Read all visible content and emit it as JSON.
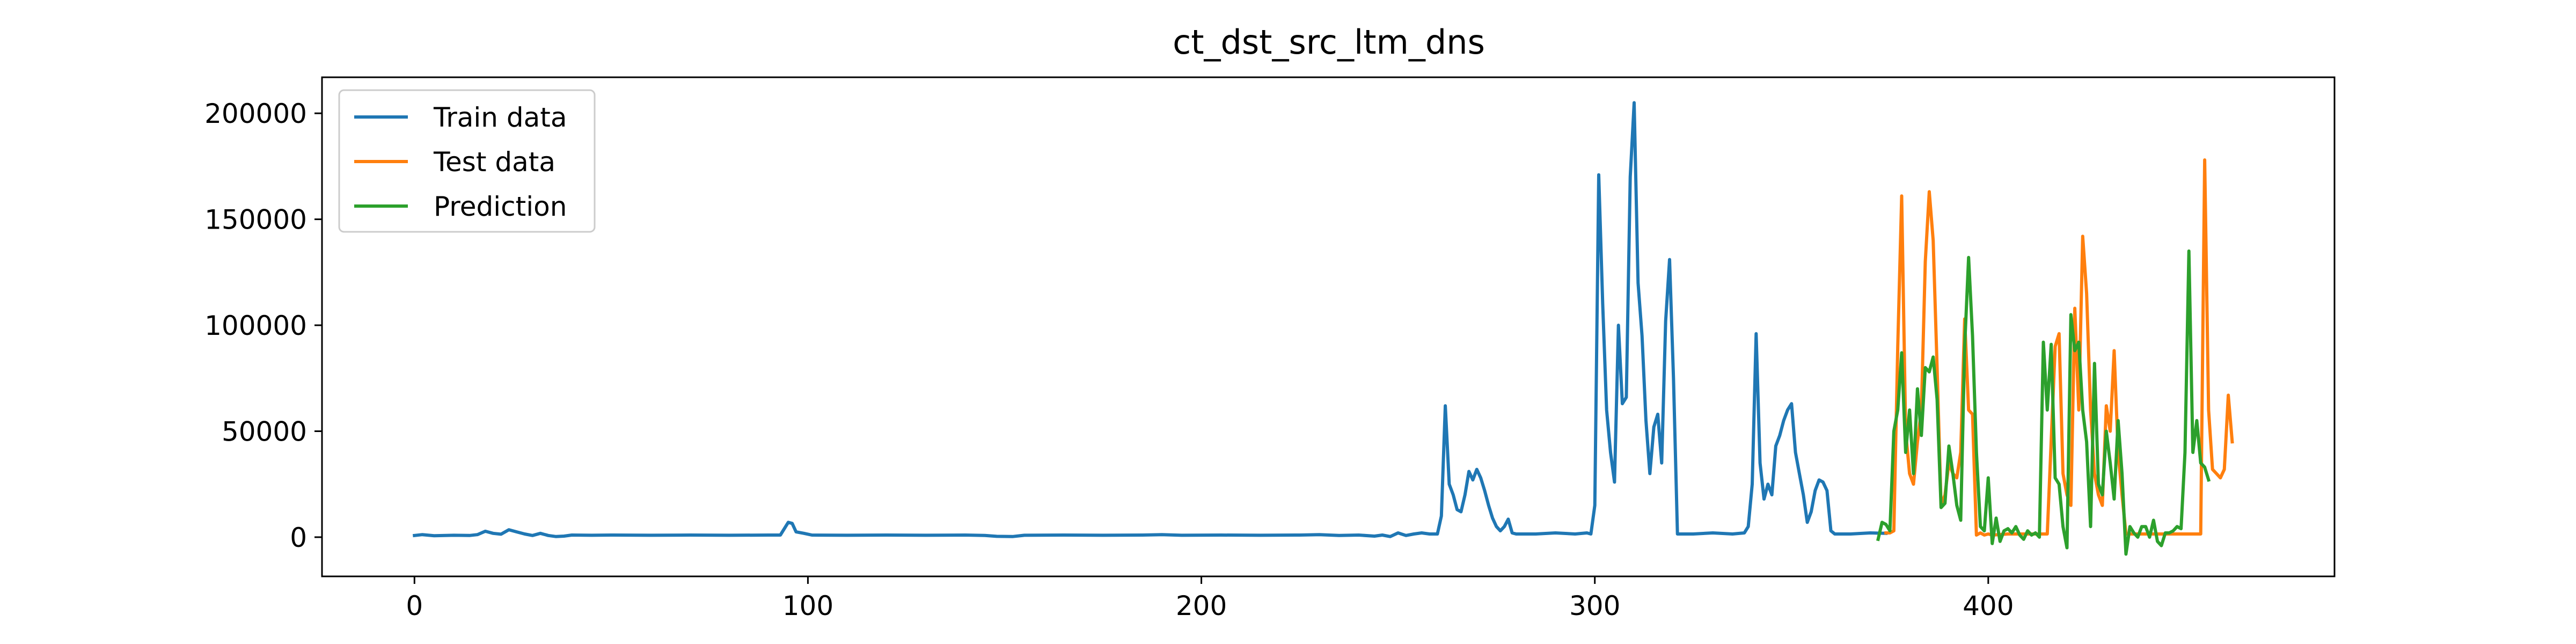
{
  "chart_data": {
    "type": "line",
    "title": "ct_dst_src_ltm_dns",
    "xlabel": "",
    "ylabel": "",
    "xlim": [
      -23.5,
      488
    ],
    "ylim": [
      -18500,
      217000
    ],
    "xticks": [
      0,
      100,
      200,
      300,
      400
    ],
    "xtick_labels": [
      "0",
      "100",
      "200",
      "300",
      "400"
    ],
    "yticks": [
      0,
      50000,
      100000,
      150000,
      200000
    ],
    "ytick_labels": [
      "0",
      "50000",
      "100000",
      "150000",
      "200000"
    ],
    "grid": false,
    "legend_position": "upper left",
    "series": [
      {
        "name": "Train data",
        "color": "#1f77b4",
        "points": [
          [
            0,
            800
          ],
          [
            2,
            1200
          ],
          [
            5,
            700
          ],
          [
            10,
            900
          ],
          [
            14,
            800
          ],
          [
            16,
            1200
          ],
          [
            18,
            2800
          ],
          [
            20,
            1800
          ],
          [
            22,
            1400
          ],
          [
            24,
            3500
          ],
          [
            26,
            2500
          ],
          [
            28,
            1500
          ],
          [
            30,
            800
          ],
          [
            32,
            1800
          ],
          [
            34,
            800
          ],
          [
            36,
            300
          ],
          [
            38,
            500
          ],
          [
            40,
            1000
          ],
          [
            45,
            900
          ],
          [
            50,
            1000
          ],
          [
            60,
            900
          ],
          [
            70,
            1000
          ],
          [
            80,
            900
          ],
          [
            90,
            1000
          ],
          [
            93,
            1000
          ],
          [
            95,
            7000
          ],
          [
            96,
            6500
          ],
          [
            97,
            2500
          ],
          [
            99,
            1800
          ],
          [
            101,
            1000
          ],
          [
            110,
            900
          ],
          [
            120,
            1000
          ],
          [
            130,
            900
          ],
          [
            140,
            1000
          ],
          [
            145,
            800
          ],
          [
            148,
            400
          ],
          [
            152,
            300
          ],
          [
            155,
            900
          ],
          [
            165,
            1000
          ],
          [
            175,
            900
          ],
          [
            185,
            1000
          ],
          [
            190,
            1200
          ],
          [
            195,
            900
          ],
          [
            205,
            1000
          ],
          [
            215,
            900
          ],
          [
            225,
            1000
          ],
          [
            230,
            1200
          ],
          [
            235,
            800
          ],
          [
            240,
            1000
          ],
          [
            244,
            500
          ],
          [
            246,
            1000
          ],
          [
            248,
            300
          ],
          [
            250,
            2000
          ],
          [
            252,
            800
          ],
          [
            254,
            1500
          ],
          [
            256,
            2000
          ],
          [
            258,
            1500
          ],
          [
            260,
            1500
          ],
          [
            261,
            10000
          ],
          [
            262,
            62000
          ],
          [
            263,
            25000
          ],
          [
            264,
            20000
          ],
          [
            265,
            13000
          ],
          [
            266,
            12000
          ],
          [
            267,
            20000
          ],
          [
            268,
            31000
          ],
          [
            269,
            27000
          ],
          [
            270,
            32000
          ],
          [
            271,
            28000
          ],
          [
            272,
            22000
          ],
          [
            273,
            15000
          ],
          [
            274,
            9000
          ],
          [
            275,
            5000
          ],
          [
            276,
            3000
          ],
          [
            277,
            5000
          ],
          [
            278,
            8500
          ],
          [
            279,
            2000
          ],
          [
            280,
            1500
          ],
          [
            285,
            1500
          ],
          [
            290,
            2000
          ],
          [
            295,
            1500
          ],
          [
            298,
            2000
          ],
          [
            299,
            1500
          ],
          [
            300,
            15000
          ],
          [
            301,
            171000
          ],
          [
            302,
            110000
          ],
          [
            303,
            60000
          ],
          [
            304,
            40000
          ],
          [
            305,
            26000
          ],
          [
            306,
            100000
          ],
          [
            307,
            63000
          ],
          [
            308,
            66000
          ],
          [
            309,
            170000
          ],
          [
            310,
            205000
          ],
          [
            311,
            120000
          ],
          [
            312,
            95000
          ],
          [
            313,
            55000
          ],
          [
            314,
            30000
          ],
          [
            315,
            52000
          ],
          [
            316,
            58000
          ],
          [
            317,
            35000
          ],
          [
            318,
            102000
          ],
          [
            319,
            131000
          ],
          [
            320,
            75000
          ],
          [
            321,
            1500
          ],
          [
            325,
            1500
          ],
          [
            330,
            2000
          ],
          [
            335,
            1500
          ],
          [
            338,
            2000
          ],
          [
            339,
            5000
          ],
          [
            340,
            25000
          ],
          [
            341,
            96000
          ],
          [
            342,
            35000
          ],
          [
            343,
            18000
          ],
          [
            344,
            25000
          ],
          [
            345,
            20000
          ],
          [
            346,
            43000
          ],
          [
            347,
            48000
          ],
          [
            348,
            55000
          ],
          [
            349,
            60000
          ],
          [
            350,
            63000
          ],
          [
            351,
            40000
          ],
          [
            352,
            30000
          ],
          [
            353,
            20000
          ],
          [
            354,
            7000
          ],
          [
            355,
            12000
          ],
          [
            356,
            22000
          ],
          [
            357,
            27000
          ],
          [
            358,
            26000
          ],
          [
            359,
            22000
          ],
          [
            360,
            3000
          ],
          [
            361,
            1500
          ],
          [
            365,
            1500
          ],
          [
            370,
            2000
          ],
          [
            374,
            1800
          ]
        ]
      },
      {
        "name": "Test data",
        "color": "#ff7f0e",
        "points": [
          [
            374,
            2000
          ],
          [
            375,
            2000
          ],
          [
            376,
            3000
          ],
          [
            377,
            90000
          ],
          [
            378,
            161000
          ],
          [
            379,
            50000
          ],
          [
            380,
            30000
          ],
          [
            381,
            25000
          ],
          [
            382,
            45000
          ],
          [
            383,
            60000
          ],
          [
            384,
            130000
          ],
          [
            385,
            163000
          ],
          [
            386,
            140000
          ],
          [
            387,
            80000
          ],
          [
            388,
            15000
          ],
          [
            389,
            20000
          ],
          [
            390,
            35000
          ],
          [
            391,
            30000
          ],
          [
            392,
            28000
          ],
          [
            393,
            40000
          ],
          [
            394,
            103000
          ],
          [
            395,
            60000
          ],
          [
            396,
            58000
          ],
          [
            397,
            1000
          ],
          [
            398,
            2000
          ],
          [
            399,
            1000
          ],
          [
            400,
            1500
          ],
          [
            401,
            1000
          ],
          [
            405,
            1500
          ],
          [
            410,
            1500
          ],
          [
            415,
            1500
          ],
          [
            417,
            90000
          ],
          [
            418,
            96000
          ],
          [
            419,
            30000
          ],
          [
            420,
            20000
          ],
          [
            421,
            15000
          ],
          [
            422,
            108000
          ],
          [
            423,
            60000
          ],
          [
            424,
            142000
          ],
          [
            425,
            115000
          ],
          [
            426,
            60000
          ],
          [
            427,
            30000
          ],
          [
            428,
            20000
          ],
          [
            429,
            15000
          ],
          [
            430,
            62000
          ],
          [
            431,
            50000
          ],
          [
            432,
            88000
          ],
          [
            433,
            40000
          ],
          [
            434,
            20000
          ],
          [
            435,
            1500
          ],
          [
            440,
            1500
          ],
          [
            445,
            1500
          ],
          [
            450,
            1500
          ],
          [
            454,
            1500
          ],
          [
            455,
            178000
          ],
          [
            456,
            60000
          ],
          [
            457,
            32000
          ],
          [
            458,
            30000
          ],
          [
            459,
            28000
          ],
          [
            460,
            32000
          ],
          [
            461,
            67000
          ],
          [
            462,
            45000
          ]
        ]
      },
      {
        "name": "Prediction",
        "color": "#2ca02c",
        "points": [
          [
            372,
            -1000
          ],
          [
            373,
            7000
          ],
          [
            374,
            6000
          ],
          [
            375,
            3000
          ],
          [
            376,
            50000
          ],
          [
            377,
            60000
          ],
          [
            378,
            87000
          ],
          [
            379,
            40000
          ],
          [
            380,
            60000
          ],
          [
            381,
            30000
          ],
          [
            382,
            70000
          ],
          [
            383,
            48000
          ],
          [
            384,
            80000
          ],
          [
            385,
            78000
          ],
          [
            386,
            85000
          ],
          [
            387,
            65000
          ],
          [
            388,
            14000
          ],
          [
            389,
            16000
          ],
          [
            390,
            43000
          ],
          [
            391,
            30000
          ],
          [
            392,
            15000
          ],
          [
            393,
            8000
          ],
          [
            394,
            90000
          ],
          [
            395,
            132000
          ],
          [
            396,
            95000
          ],
          [
            397,
            40000
          ],
          [
            398,
            5000
          ],
          [
            399,
            3000
          ],
          [
            400,
            28000
          ],
          [
            401,
            -3000
          ],
          [
            402,
            9000
          ],
          [
            403,
            -2000
          ],
          [
            404,
            3000
          ],
          [
            405,
            4000
          ],
          [
            406,
            2000
          ],
          [
            407,
            5000
          ],
          [
            408,
            1000
          ],
          [
            409,
            -1000
          ],
          [
            410,
            3000
          ],
          [
            411,
            1000
          ],
          [
            412,
            2000
          ],
          [
            413,
            0
          ],
          [
            414,
            92000
          ],
          [
            415,
            60000
          ],
          [
            416,
            91000
          ],
          [
            417,
            28000
          ],
          [
            418,
            25000
          ],
          [
            419,
            5000
          ],
          [
            420,
            -5000
          ],
          [
            421,
            105000
          ],
          [
            422,
            88000
          ],
          [
            423,
            92000
          ],
          [
            424,
            60000
          ],
          [
            425,
            45000
          ],
          [
            426,
            5000
          ],
          [
            427,
            82000
          ],
          [
            428,
            25000
          ],
          [
            429,
            20000
          ],
          [
            430,
            50000
          ],
          [
            431,
            35000
          ],
          [
            432,
            18000
          ],
          [
            433,
            55000
          ],
          [
            434,
            30000
          ],
          [
            435,
            -8000
          ],
          [
            436,
            5000
          ],
          [
            437,
            2000
          ],
          [
            438,
            0
          ],
          [
            439,
            5000
          ],
          [
            440,
            5000
          ],
          [
            441,
            0
          ],
          [
            442,
            8000
          ],
          [
            443,
            -2000
          ],
          [
            444,
            -4000
          ],
          [
            445,
            2000
          ],
          [
            446,
            2000
          ],
          [
            447,
            3000
          ],
          [
            448,
            5000
          ],
          [
            449,
            4000
          ],
          [
            450,
            40000
          ],
          [
            451,
            135000
          ],
          [
            452,
            40000
          ],
          [
            453,
            55000
          ],
          [
            454,
            35000
          ],
          [
            455,
            33000
          ],
          [
            456,
            27000
          ]
        ]
      }
    ]
  }
}
